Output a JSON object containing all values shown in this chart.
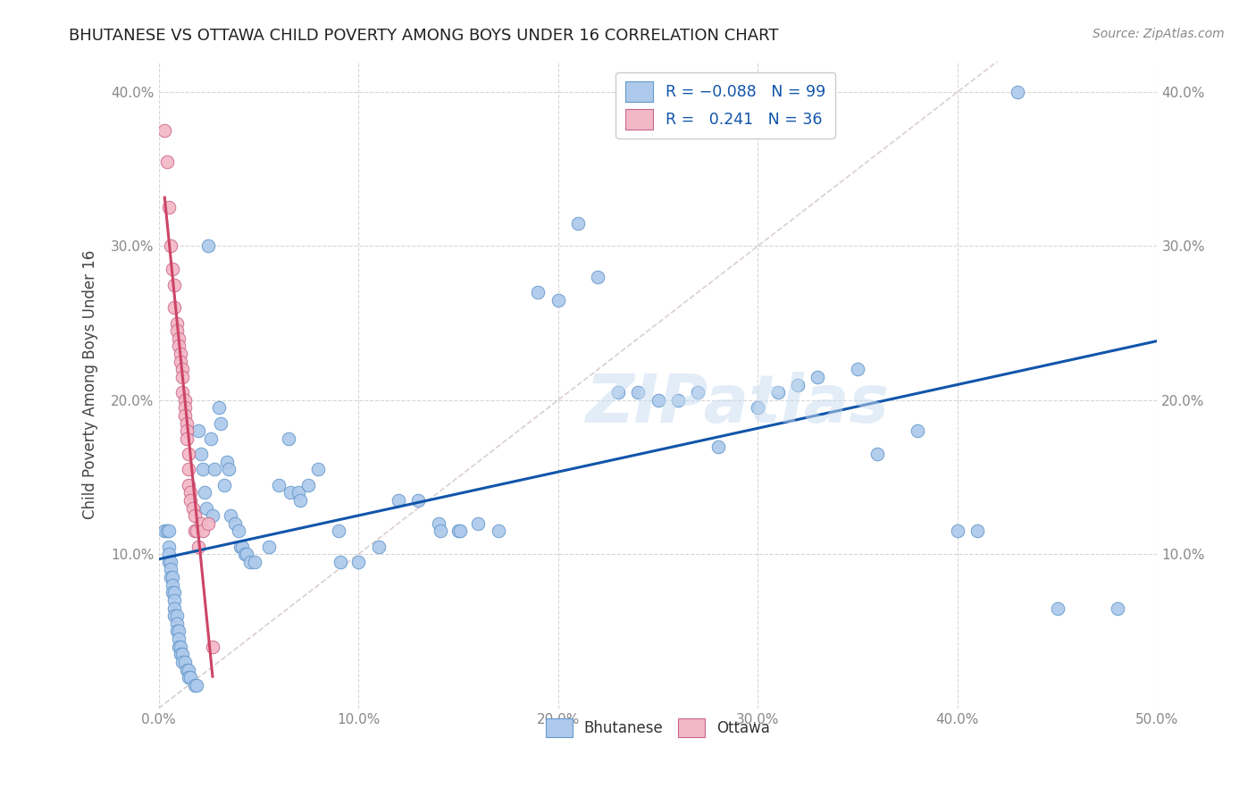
{
  "title": "BHUTANESE VS OTTAWA CHILD POVERTY AMONG BOYS UNDER 16 CORRELATION CHART",
  "source": "Source: ZipAtlas.com",
  "ylabel": "Child Poverty Among Boys Under 16",
  "watermark": "ZIPatlas",
  "xlim": [
    0.0,
    0.5
  ],
  "ylim": [
    0.0,
    0.42
  ],
  "xticks": [
    0.0,
    0.1,
    0.2,
    0.3,
    0.4,
    0.5
  ],
  "yticks": [
    0.1,
    0.2,
    0.3,
    0.4
  ],
  "xticklabels": [
    "0.0%",
    "10.0%",
    "20.0%",
    "30.0%",
    "40.0%",
    "50.0%"
  ],
  "yticklabels": [
    "10.0%",
    "20.0%",
    "30.0%",
    "40.0%"
  ],
  "bhutanese_color": "#adc9eb",
  "ottawa_color": "#f2b8c6",
  "bhutanese_edge": "#6699cc",
  "ottawa_edge": "#cc6688",
  "trend_blue_color": "#1155aa",
  "trend_pink_color": "#cc4466",
  "trend_diag_color": "#ccbbbb",
  "background_color": "#ffffff",
  "grid_color": "#cccccc",
  "title_color": "#222222",
  "axis_label_color": "#444444",
  "tick_label_color": "#888888",
  "bhutanese_points": [
    [
      0.003,
      0.115
    ],
    [
      0.004,
      0.115
    ],
    [
      0.005,
      0.115
    ],
    [
      0.005,
      0.105
    ],
    [
      0.005,
      0.1
    ],
    [
      0.005,
      0.095
    ],
    [
      0.006,
      0.095
    ],
    [
      0.006,
      0.09
    ],
    [
      0.006,
      0.085
    ],
    [
      0.007,
      0.085
    ],
    [
      0.007,
      0.08
    ],
    [
      0.007,
      0.075
    ],
    [
      0.008,
      0.075
    ],
    [
      0.008,
      0.07
    ],
    [
      0.008,
      0.065
    ],
    [
      0.008,
      0.06
    ],
    [
      0.009,
      0.06
    ],
    [
      0.009,
      0.055
    ],
    [
      0.009,
      0.05
    ],
    [
      0.01,
      0.05
    ],
    [
      0.01,
      0.045
    ],
    [
      0.01,
      0.04
    ],
    [
      0.011,
      0.04
    ],
    [
      0.011,
      0.035
    ],
    [
      0.012,
      0.035
    ],
    [
      0.012,
      0.03
    ],
    [
      0.013,
      0.03
    ],
    [
      0.014,
      0.025
    ],
    [
      0.015,
      0.025
    ],
    [
      0.015,
      0.02
    ],
    [
      0.016,
      0.02
    ],
    [
      0.018,
      0.015
    ],
    [
      0.019,
      0.015
    ],
    [
      0.02,
      0.18
    ],
    [
      0.021,
      0.165
    ],
    [
      0.022,
      0.155
    ],
    [
      0.023,
      0.14
    ],
    [
      0.024,
      0.13
    ],
    [
      0.025,
      0.3
    ],
    [
      0.026,
      0.175
    ],
    [
      0.027,
      0.125
    ],
    [
      0.028,
      0.155
    ],
    [
      0.03,
      0.195
    ],
    [
      0.031,
      0.185
    ],
    [
      0.033,
      0.145
    ],
    [
      0.034,
      0.16
    ],
    [
      0.035,
      0.155
    ],
    [
      0.036,
      0.125
    ],
    [
      0.038,
      0.12
    ],
    [
      0.04,
      0.115
    ],
    [
      0.041,
      0.105
    ],
    [
      0.042,
      0.105
    ],
    [
      0.043,
      0.1
    ],
    [
      0.044,
      0.1
    ],
    [
      0.046,
      0.095
    ],
    [
      0.048,
      0.095
    ],
    [
      0.055,
      0.105
    ],
    [
      0.06,
      0.145
    ],
    [
      0.065,
      0.175
    ],
    [
      0.066,
      0.14
    ],
    [
      0.07,
      0.14
    ],
    [
      0.071,
      0.135
    ],
    [
      0.075,
      0.145
    ],
    [
      0.08,
      0.155
    ],
    [
      0.09,
      0.115
    ],
    [
      0.091,
      0.095
    ],
    [
      0.1,
      0.095
    ],
    [
      0.11,
      0.105
    ],
    [
      0.12,
      0.135
    ],
    [
      0.13,
      0.135
    ],
    [
      0.14,
      0.12
    ],
    [
      0.141,
      0.115
    ],
    [
      0.15,
      0.115
    ],
    [
      0.151,
      0.115
    ],
    [
      0.16,
      0.12
    ],
    [
      0.17,
      0.115
    ],
    [
      0.19,
      0.27
    ],
    [
      0.2,
      0.265
    ],
    [
      0.21,
      0.315
    ],
    [
      0.22,
      0.28
    ],
    [
      0.23,
      0.205
    ],
    [
      0.24,
      0.205
    ],
    [
      0.25,
      0.2
    ],
    [
      0.26,
      0.2
    ],
    [
      0.27,
      0.205
    ],
    [
      0.28,
      0.17
    ],
    [
      0.3,
      0.195
    ],
    [
      0.31,
      0.205
    ],
    [
      0.32,
      0.21
    ],
    [
      0.33,
      0.215
    ],
    [
      0.35,
      0.22
    ],
    [
      0.36,
      0.165
    ],
    [
      0.38,
      0.18
    ],
    [
      0.4,
      0.115
    ],
    [
      0.41,
      0.115
    ],
    [
      0.43,
      0.4
    ],
    [
      0.45,
      0.065
    ],
    [
      0.48,
      0.065
    ]
  ],
  "ottawa_points": [
    [
      0.003,
      0.375
    ],
    [
      0.004,
      0.355
    ],
    [
      0.005,
      0.325
    ],
    [
      0.006,
      0.3
    ],
    [
      0.007,
      0.285
    ],
    [
      0.008,
      0.275
    ],
    [
      0.008,
      0.26
    ],
    [
      0.009,
      0.25
    ],
    [
      0.009,
      0.245
    ],
    [
      0.01,
      0.24
    ],
    [
      0.01,
      0.235
    ],
    [
      0.011,
      0.23
    ],
    [
      0.011,
      0.225
    ],
    [
      0.012,
      0.22
    ],
    [
      0.012,
      0.215
    ],
    [
      0.012,
      0.205
    ],
    [
      0.013,
      0.2
    ],
    [
      0.013,
      0.195
    ],
    [
      0.013,
      0.19
    ],
    [
      0.014,
      0.185
    ],
    [
      0.014,
      0.18
    ],
    [
      0.014,
      0.175
    ],
    [
      0.015,
      0.165
    ],
    [
      0.015,
      0.155
    ],
    [
      0.015,
      0.145
    ],
    [
      0.016,
      0.14
    ],
    [
      0.016,
      0.135
    ],
    [
      0.017,
      0.13
    ],
    [
      0.018,
      0.125
    ],
    [
      0.018,
      0.115
    ],
    [
      0.019,
      0.115
    ],
    [
      0.02,
      0.105
    ],
    [
      0.021,
      0.12
    ],
    [
      0.022,
      0.115
    ],
    [
      0.025,
      0.12
    ],
    [
      0.027,
      0.04
    ]
  ]
}
